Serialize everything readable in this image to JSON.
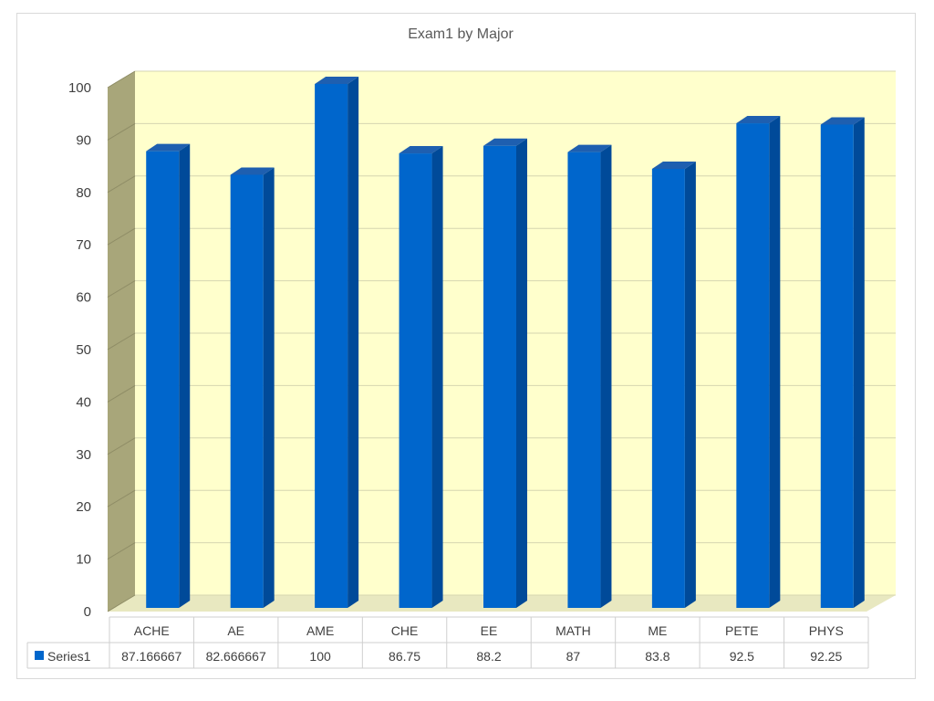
{
  "chart_data": {
    "type": "bar",
    "title": "Exam1 by Major",
    "categories": [
      "ACHE",
      "AE",
      "AME",
      "CHE",
      "EE",
      "MATH",
      "ME",
      "PETE",
      "PHYS"
    ],
    "series": [
      {
        "name": "Series1",
        "values": [
          87.166667,
          82.666667,
          100,
          86.75,
          88.2,
          87,
          83.8,
          92.5,
          92.25
        ],
        "value_labels": [
          "87.166667",
          "82.666667",
          "100",
          "86.75",
          "88.2",
          "87",
          "83.8",
          "92.5",
          "92.25"
        ]
      }
    ],
    "y_ticks": [
      "0",
      "10",
      "20",
      "30",
      "40",
      "50",
      "60",
      "70",
      "80",
      "90",
      "100"
    ],
    "ylim": [
      0,
      100
    ],
    "grid": true,
    "style": "3d-column",
    "data_table": true,
    "colors": {
      "bar_front": "#0066CC",
      "bar_side": "#004A99",
      "bar_top": "#1E5FB0",
      "back_wall": "#FFFFCC",
      "side_wall": "#A8A67A",
      "floor": "#E8E8C0"
    }
  }
}
